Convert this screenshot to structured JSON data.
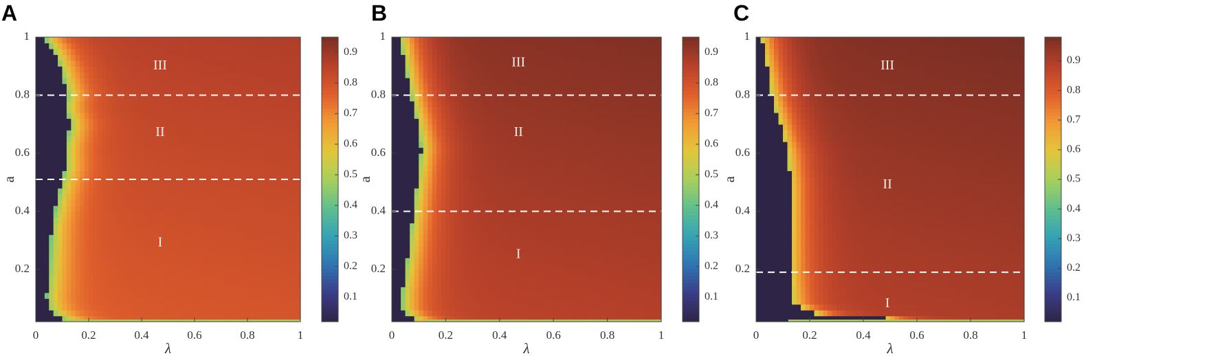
{
  "colors": {
    "cmap": [
      "#2e2445",
      "#3a3c86",
      "#2f74b3",
      "#35a3b4",
      "#5fbf8e",
      "#a8d05c",
      "#e3c63a",
      "#f29a35",
      "#e05e2c",
      "#b8412a",
      "#7a2e24"
    ],
    "region_below": "#2e2445",
    "background": "#ffffff"
  },
  "chart_data": [
    {
      "type": "heatmap",
      "panel": "A",
      "xlabel": "λ",
      "ylabel": "a",
      "xlim": [
        0,
        1
      ],
      "ylim": [
        0.02,
        1
      ],
      "xticks": [
        "0",
        "0.2",
        "0.4",
        "0.6",
        "0.8",
        "1"
      ],
      "yticks": [
        "0.2",
        "0.4",
        "0.6",
        "0.8",
        "1"
      ],
      "colorbar_ticks": [
        "0.1",
        "0.2",
        "0.3",
        "0.4",
        "0.5",
        "0.6",
        "0.7",
        "0.8",
        "0.9"
      ],
      "colorbar_range": [
        0.02,
        0.95
      ],
      "boundary": [
        [
          0.03,
          0.1
        ],
        [
          0.06,
          0.05
        ],
        [
          0.1,
          0.04
        ],
        [
          0.2,
          0.05
        ],
        [
          0.35,
          0.06
        ],
        [
          0.48,
          0.09
        ],
        [
          0.55,
          0.11
        ],
        [
          0.62,
          0.11
        ],
        [
          0.7,
          0.13
        ],
        [
          0.76,
          0.11
        ],
        [
          0.8,
          0.12
        ],
        [
          0.9,
          0.09
        ],
        [
          0.96,
          0.06
        ],
        [
          1.0,
          0.03
        ]
      ],
      "dashed_lines": [
        0.8,
        0.51
      ],
      "regions": [
        {
          "label": "III",
          "x": 0.47,
          "y": 0.9
        },
        {
          "label": "II",
          "x": 0.47,
          "y": 0.67
        },
        {
          "label": "I",
          "x": 0.47,
          "y": 0.29
        }
      ],
      "high_value": 0.85,
      "low_value": 0.42
    },
    {
      "type": "heatmap",
      "panel": "B",
      "xlabel": "λ",
      "ylabel": "a",
      "xlim": [
        0,
        1
      ],
      "ylim": [
        0.02,
        1
      ],
      "xticks": [
        "0",
        "0.2",
        "0.4",
        "0.6",
        "0.8",
        "1"
      ],
      "yticks": [
        "0.2",
        "0.4",
        "0.6",
        "0.8",
        "1"
      ],
      "colorbar_ticks": [
        "0.1",
        "0.2",
        "0.3",
        "0.4",
        "0.5",
        "0.6",
        "0.7",
        "0.8",
        "0.9"
      ],
      "colorbar_range": [
        0.02,
        0.95
      ],
      "boundary": [
        [
          0.03,
          0.08
        ],
        [
          0.06,
          0.04
        ],
        [
          0.12,
          0.04
        ],
        [
          0.25,
          0.06
        ],
        [
          0.4,
          0.08
        ],
        [
          0.55,
          0.1
        ],
        [
          0.62,
          0.11
        ],
        [
          0.72,
          0.09
        ],
        [
          0.8,
          0.07
        ],
        [
          0.9,
          0.05
        ],
        [
          1.0,
          0.03
        ]
      ],
      "dashed_lines": [
        0.8,
        0.4
      ],
      "regions": [
        {
          "label": "III",
          "x": 0.47,
          "y": 0.91
        },
        {
          "label": "II",
          "x": 0.47,
          "y": 0.67
        },
        {
          "label": "I",
          "x": 0.47,
          "y": 0.25
        }
      ],
      "high_value": 0.92,
      "low_value": 0.45
    },
    {
      "type": "heatmap",
      "panel": "C",
      "xlabel": "λ",
      "ylabel": "a",
      "xlim": [
        0,
        1
      ],
      "ylim": [
        0.02,
        1
      ],
      "xticks": [
        "0",
        "0.2",
        "0.4",
        "0.6",
        "0.8",
        "1"
      ],
      "yticks": [
        "0.2",
        "0.4",
        "0.6",
        "0.8",
        "1"
      ],
      "colorbar_ticks": [
        "0.1",
        "0.2",
        "0.3",
        "0.4",
        "0.5",
        "0.6",
        "0.7",
        "0.8",
        "0.9"
      ],
      "colorbar_range": [
        0.02,
        0.98
      ],
      "boundary": [
        [
          0.03,
          0.48
        ],
        [
          0.05,
          0.22
        ],
        [
          0.08,
          0.14
        ],
        [
          0.2,
          0.13
        ],
        [
          0.35,
          0.13
        ],
        [
          0.5,
          0.13
        ],
        [
          0.6,
          0.12
        ],
        [
          0.7,
          0.09
        ],
        [
          0.8,
          0.06
        ],
        [
          0.9,
          0.04
        ],
        [
          1.0,
          0.02
        ]
      ],
      "dashed_lines": [
        0.8,
        0.19
      ],
      "regions": [
        {
          "label": "III",
          "x": 0.49,
          "y": 0.9
        },
        {
          "label": "II",
          "x": 0.49,
          "y": 0.49
        },
        {
          "label": "I",
          "x": 0.49,
          "y": 0.08
        }
      ],
      "high_value": 0.96,
      "low_value": 0.55
    }
  ]
}
